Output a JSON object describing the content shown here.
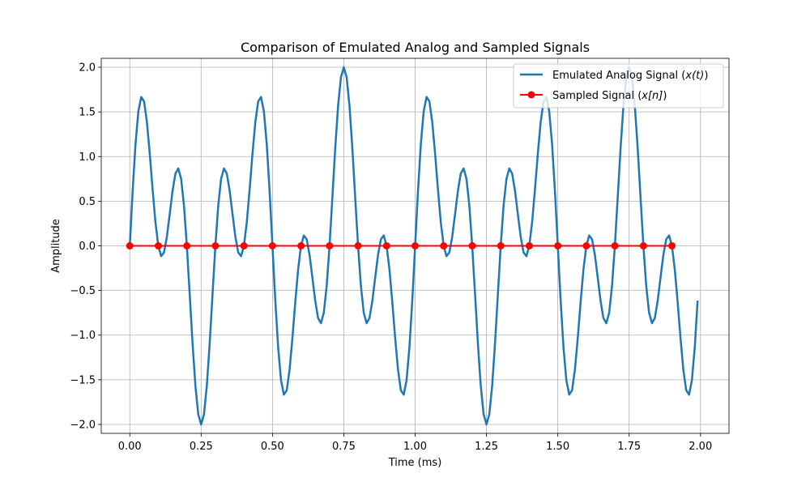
{
  "chart_data": {
    "type": "line",
    "title": "Comparison of Emulated Analog and Sampled Signals",
    "xlabel": "Time (ms)",
    "ylabel": "Amplitude",
    "xlim": [
      -0.1,
      2.1
    ],
    "ylim": [
      -2.1,
      2.1
    ],
    "xticks": [
      0.0,
      0.25,
      0.5,
      0.75,
      1.0,
      1.25,
      1.5,
      1.75,
      2.0
    ],
    "xtick_labels": [
      "0.00",
      "0.25",
      "0.50",
      "0.75",
      "1.00",
      "1.25",
      "1.50",
      "1.75",
      "2.00"
    ],
    "yticks": [
      -2.0,
      -1.5,
      -1.0,
      -0.5,
      0.0,
      0.5,
      1.0,
      1.5,
      2.0
    ],
    "ytick_labels": [
      "−2.0",
      "−1.5",
      "−1.0",
      "−0.5",
      "0.0",
      "0.5",
      "1.0",
      "1.5",
      "2.0"
    ],
    "grid": true,
    "legend_position": "top-right",
    "series": [
      {
        "name": "Emulated Analog Signal (x(t))",
        "legend_main": "Emulated Analog Signal (",
        "legend_math": "x(t)",
        "legend_tail": ")",
        "kind": "line",
        "color": "#1f77b4",
        "x_start": 0.0,
        "x_end": 1.99,
        "x_step": 0.01,
        "formula_note": "sin(2π·3000t) + sin(2π·7000t), t in seconds"
      },
      {
        "name": "Sampled Signal (x[n])",
        "legend_main": "Sampled Signal (",
        "legend_math": "x[n]",
        "legend_tail": ")",
        "kind": "line-marker",
        "color": "#ff0000",
        "x": [
          0.0,
          0.1,
          0.2,
          0.3,
          0.4,
          0.5,
          0.6,
          0.7,
          0.8,
          0.9,
          1.0,
          1.1,
          1.2,
          1.3,
          1.4,
          1.5,
          1.6,
          1.7,
          1.8,
          1.9
        ],
        "y": [
          0,
          0,
          0,
          0,
          0,
          0,
          0,
          0,
          0,
          0,
          0,
          0,
          0,
          0,
          0,
          0,
          0,
          0,
          0,
          0
        ]
      }
    ]
  }
}
